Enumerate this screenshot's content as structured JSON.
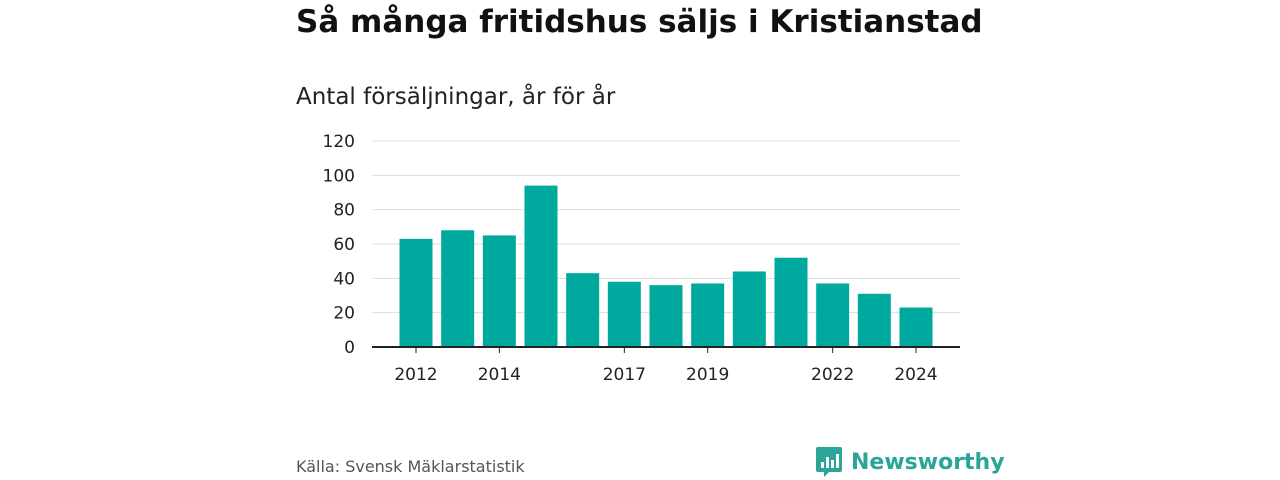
{
  "header": {
    "title": "Så många fritidshus säljs i Kristianstad",
    "subtitle": "Antal försäljningar, år för år"
  },
  "footer": {
    "source": "Källa: Svensk Mäklarstatistik",
    "brand": "Newsworthy",
    "brand_icon": "bar-chart-logo-icon"
  },
  "colors": {
    "bar": "#00a99d",
    "brand": "#2aa597",
    "grid": "#dddddd",
    "axis": "#222222"
  },
  "chart_data": {
    "type": "bar",
    "title": "Så många fritidshus säljs i Kristianstad",
    "subtitle": "Antal försäljningar, år för år",
    "categories": [
      "2012",
      "2013",
      "2014",
      "2015",
      "2016",
      "2017",
      "2018",
      "2019",
      "2020",
      "2021",
      "2022",
      "2023",
      "2024"
    ],
    "values": [
      63,
      68,
      65,
      94,
      43,
      38,
      36,
      37,
      44,
      52,
      37,
      31,
      23
    ],
    "x_tick_labels": [
      "2012",
      "2014",
      "2017",
      "2019",
      "2022",
      "2024"
    ],
    "yticks": [
      0,
      20,
      40,
      60,
      80,
      100,
      120
    ],
    "ylim": [
      0,
      120
    ],
    "grid": true,
    "legend": "none"
  }
}
